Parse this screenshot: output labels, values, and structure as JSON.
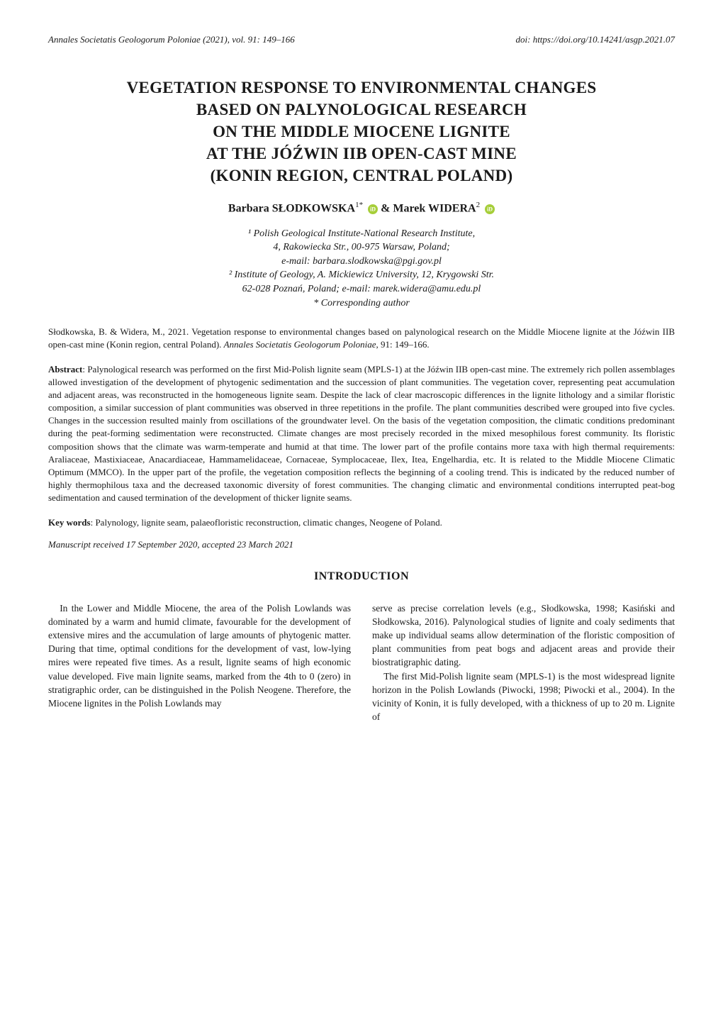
{
  "header": {
    "left": "Annales Societatis Geologorum Poloniae (2021), vol. 91: 149–166",
    "right": "doi: https://doi.org/10.14241/asgp.2021.07"
  },
  "title": {
    "line1": "VEGETATION RESPONSE TO ENVIRONMENTAL CHANGES",
    "line2": "BASED ON PALYNOLOGICAL RESEARCH",
    "line3": "ON THE MIDDLE MIOCENE LIGNITE",
    "line4": "AT THE JÓŹWIN IIB OPEN-CAST MINE",
    "line5": "(KONIN REGION, CENTRAL POLAND)"
  },
  "authors": {
    "a1_name": "Barbara SŁODKOWSKA",
    "a1_super": "1*",
    "amp": " & ",
    "a2_name": "Marek WIDERA",
    "a2_super": "2"
  },
  "affiliations": {
    "l1": "¹ Polish Geological Institute-National Research Institute,",
    "l2": "4, Rakowiecka Str., 00-975 Warsaw, Poland;",
    "l3": "e-mail: barbara.slodkowska@pgi.gov.pl",
    "l4": "² Institute of Geology, A. Mickiewicz University, 12, Krygowski Str.",
    "l5": "62-028 Poznań, Poland; e-mail: marek.widera@amu.edu.pl",
    "l6": "* Corresponding author"
  },
  "citation": {
    "text_a": "Słodkowska, B. & Widera, M., 2021. Vegetation response to environmental changes based on palynological research on the Middle Miocene lignite at the Jóźwin IIB open-cast mine (Konin region, central Poland). ",
    "journal": "Annales Societatis Geologorum Poloniae",
    "text_b": ", 91: 149–166."
  },
  "abstract": {
    "label": "Abstract",
    "text": ": Palynological research was performed on the first Mid-Polish lignite seam (MPLS-1) at the Jóźwin IIB open-cast mine. The extremely rich pollen assemblages allowed investigation of the development of phytogenic sedimentation and the succession of plant communities. The vegetation cover, representing peat accumulation and adjacent areas, was reconstructed in the homogeneous lignite seam. Despite the lack of clear macroscopic differences in the lignite lithology and a similar floristic composition, a similar succession of plant communities was observed in three repetitions in the profile. The plant communities described were grouped into five cycles. Changes in the succession resulted mainly from oscillations of the groundwater level. On the basis of the vegetation composition, the climatic conditions predominant during the peat-forming sedimentation were reconstructed. Climate changes are most precisely recorded in the mixed mesophilous forest community. Its floristic composition shows that the climate was warm-temperate and humid at that time. The lower part of the profile contains more taxa with high thermal requirements: Araliaceae, Mastixiaceae, Anacardiaceae, Hammamelidaceae, Cornaceae, Symplocaceae, Ilex, Itea, Engelhardia, etc. It is related to the Middle Miocene Climatic Optimum (MMCO). In the upper part of the profile, the vegetation composition reflects the beginning of a cooling trend. This is indicated by the reduced number of highly thermophilous taxa and the decreased taxonomic diversity of forest communities. The changing climatic and environmental conditions interrupted peat-bog sedimentation and caused termination of the development of thicker lignite seams."
  },
  "keywords": {
    "label": "Key words",
    "text": ": Palynology, lignite seam, palaeofloristic reconstruction, climatic changes, Neogene of Poland."
  },
  "manuscript": "Manuscript received 17 September 2020, accepted 23 March 2021",
  "section_heading": "INTRODUCTION",
  "intro": {
    "left_p1": "In the Lower and Middle Miocene, the area of the Polish Lowlands was dominated by a warm and humid climate, favourable for the development of extensive mires and the accumulation of large amounts of phytogenic matter. During that time, optimal conditions for the development of vast, low-lying mires were repeated five times. As a result, lignite seams of high economic value developed. Five main lignite seams, marked from the 4th to 0 (zero) in stratigraphic order, can be distinguished in the Polish Neogene. Therefore, the Miocene lignites in the Polish Lowlands may",
    "right_p1": "serve as precise correlation levels (e.g., Słodkowska, 1998; Kasiński and Słodkowska, 2016). Palynological studies of lignite and coaly sediments that make up individual seams allow determination of the floristic composition of plant communities from peat bogs and adjacent areas and provide their biostratigraphic dating.",
    "right_p2": "The first Mid-Polish lignite seam (MPLS-1) is the most widespread lignite horizon in the Polish Lowlands (Piwocki, 1998; Piwocki et al., 2004). In the vicinity of Konin, it is fully developed, with a thickness of up to 20 m. Lignite of"
  }
}
